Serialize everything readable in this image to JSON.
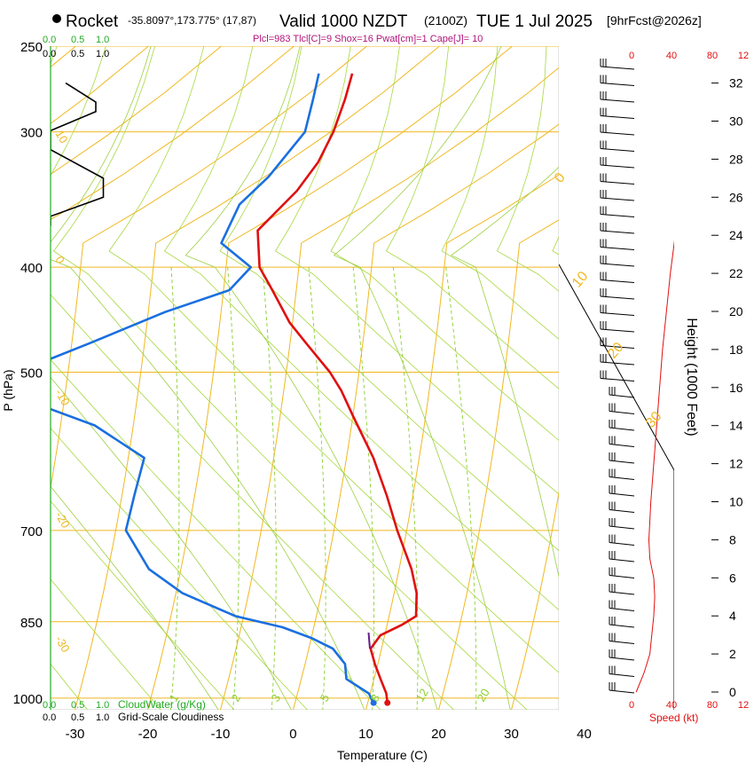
{
  "header": {
    "station": "Rocket",
    "coords": "-35.8097°,173.775° (17,87)",
    "valid": "Valid 1000 NZDT",
    "utc": "(2100Z)",
    "date": "TUE 1 Jul 2025",
    "fcst": "[9hrFcst@2026z]",
    "indices": "Plcl=983 Tlcl[C]=9 Shox=16 Pwat[cm]=1 Cape[J]= 10"
  },
  "colors": {
    "temp": "#e01010",
    "dew": "#1a6fe0",
    "isotherm": "#f0b820",
    "dry": "#a8d840",
    "mix": "#8ad030",
    "cloud": "#22aa22",
    "wind": "#e01010"
  },
  "chart_data": {
    "type": "line",
    "title": "Skew-T Sounding",
    "xlabel": "Temperature (C)",
    "ylabel": "P (hPa)",
    "right_label": "Height (1000 Feet)",
    "x_ticks": [
      -30,
      -20,
      -10,
      0,
      10,
      20,
      30,
      40
    ],
    "x_tick_labels": [
      "-30",
      "-20",
      "-10",
      "0",
      "10",
      "20",
      "30",
      "40"
    ],
    "p_ticks": [
      250,
      300,
      400,
      500,
      700,
      850,
      1000
    ],
    "p_tick_labels": [
      "250",
      "300",
      "400",
      "500",
      "700",
      "850",
      "1000"
    ],
    "height_ticks": [
      0,
      2,
      4,
      6,
      8,
      10,
      12,
      14,
      16,
      18,
      20,
      22,
      24,
      26,
      28,
      30,
      32
    ],
    "height_tick_labels": [
      "0",
      "2",
      "4",
      "6",
      "8",
      "10",
      "12",
      "14",
      "16",
      "18",
      "20",
      "22",
      "24",
      "26",
      "28",
      "30",
      "32"
    ],
    "isotherm_labels": [
      "10",
      "0",
      "-10",
      "-20",
      "-30"
    ],
    "dry_adiabat_labels": [
      "0",
      "10",
      "20",
      "30"
    ],
    "mixing_labels": [
      "1",
      "2",
      "3",
      "5",
      "8",
      "12",
      "20"
    ],
    "cloud_top_labels": [
      "0.0",
      "0.5",
      "1.0"
    ],
    "cloud_bottom_labels": [
      "0.0",
      "0.5",
      "1.0"
    ],
    "speed_labels": [
      "0",
      "40",
      "80",
      "12"
    ],
    "cloudwater_label": "CloudWater (g/Kg)",
    "cloudiness_label": "Grid-Scale Cloudiness",
    "speed_label": "Speed (kt)",
    "series": [
      {
        "name": "Temperature",
        "p": [
          1010,
          990,
          960,
          930,
          900,
          875,
          855,
          840,
          800,
          760,
          700,
          650,
          600,
          550,
          520,
          500,
          470,
          450,
          420,
          400,
          370,
          340,
          320,
          300,
          280,
          265
        ],
        "t": [
          12.7,
          12.2,
          10.9,
          9.6,
          8.5,
          9.4,
          12.1,
          13.7,
          13.1,
          11.7,
          8.7,
          6.4,
          3.7,
          0.1,
          -2.1,
          -4.0,
          -7.8,
          -10.4,
          -13.3,
          -15.4,
          -19.0,
          -22.6,
          -25.7,
          -29.6,
          -34.0,
          -37.5
        ]
      },
      {
        "name": "Dew point",
        "p": [
          1010,
          990,
          960,
          930,
          900,
          880,
          860,
          840,
          800,
          760,
          700,
          650,
          600,
          560,
          520,
          500,
          470,
          440,
          420,
          400,
          380,
          350,
          330,
          300,
          280,
          265
        ],
        "t": [
          10.8,
          9.8,
          6.2,
          5.5,
          3.3,
          0.0,
          -4.3,
          -11.1,
          -19.1,
          -24.4,
          -28.6,
          -28.3,
          -27.8,
          -35.3,
          -49.0,
          -47.0,
          -37.5,
          -27.7,
          -19.2,
          -16.6,
          -21.0,
          -27.5,
          -29.5,
          -33.5,
          -38.4,
          -42.1
        ]
      },
      {
        "name": "CloudWater",
        "p": [
          900,
          870
        ],
        "t": [
          8.4,
          7.7
        ]
      }
    ],
    "height_profile": {
      "height_kft": [
        0,
        1,
        2,
        3,
        4,
        5,
        6,
        7,
        8,
        10,
        12,
        14,
        16,
        18,
        20,
        22,
        24,
        26,
        28,
        30,
        31,
        32
      ],
      "speed_kt": [
        2,
        10,
        16,
        18,
        20,
        21,
        20,
        16,
        15,
        17,
        20,
        23,
        26,
        29,
        33,
        37,
        42,
        51,
        61,
        72,
        78,
        82
      ]
    },
    "cloudiness_profile": {
      "height_kft": [
        24.5,
        25,
        26,
        27,
        28.5,
        29.5,
        30.5,
        31,
        31.5,
        32
      ],
      "value": [
        0.0,
        0.0,
        0.35,
        0.35,
        0.0,
        0.0,
        0.3,
        0.3,
        0.2,
        0.1
      ]
    }
  }
}
